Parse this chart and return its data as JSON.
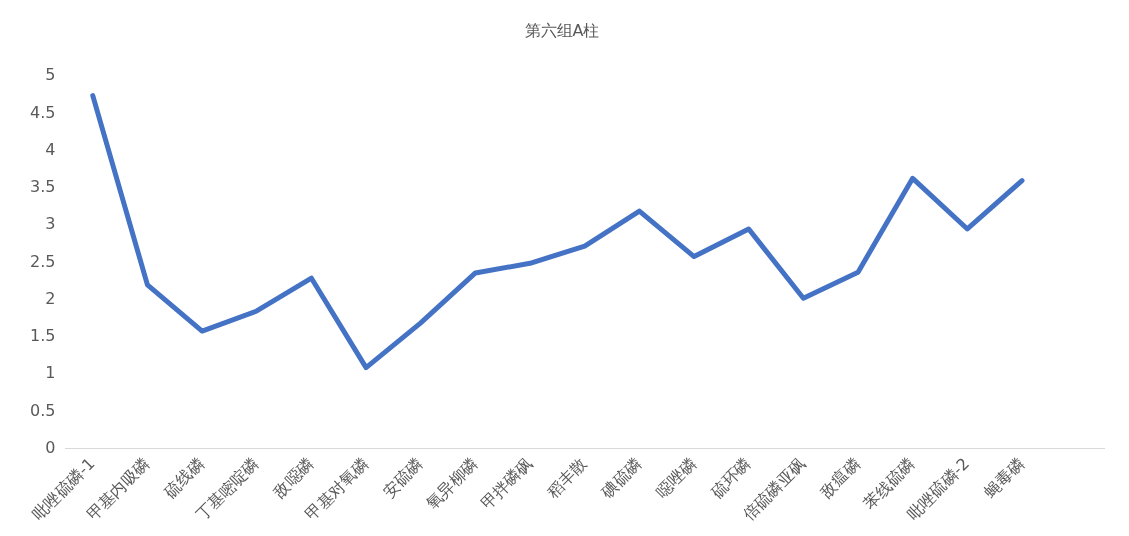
{
  "chart_data": {
    "type": "line",
    "title": "第六组A柱",
    "categories": [
      "吡唑硫磷-1",
      "甲基内吸磷",
      "硫线磷",
      "丁基嘧啶磷",
      "敌噁磷",
      "甲基对氧磷",
      "安硫磷",
      "氧异柳磷",
      "甲拌磷砜",
      "稻丰散",
      "碘硫磷",
      "噁唑磷",
      "硫环磷",
      "倍硫磷亚砜",
      "敌瘟磷",
      "苯线硫磷",
      "吡唑硫磷-2",
      "蝇毒磷",
      null
    ],
    "series": [
      {
        "color": "#4472c4",
        "values": [
          4.74,
          2.2,
          1.58,
          1.85,
          2.29,
          1.09,
          1.69,
          2.36,
          2.49,
          2.72,
          3.19,
          2.58,
          2.95,
          2.02,
          2.37,
          3.63,
          2.95,
          3.6,
          null
        ]
      }
    ],
    "ylim": [
      0,
      5
    ],
    "yticks": [
      0,
      0.5,
      1,
      1.5,
      2,
      2.5,
      3,
      3.5,
      4,
      4.5,
      5
    ],
    "grid": false,
    "legend": false,
    "marker": "none",
    "line_style": "solid"
  }
}
